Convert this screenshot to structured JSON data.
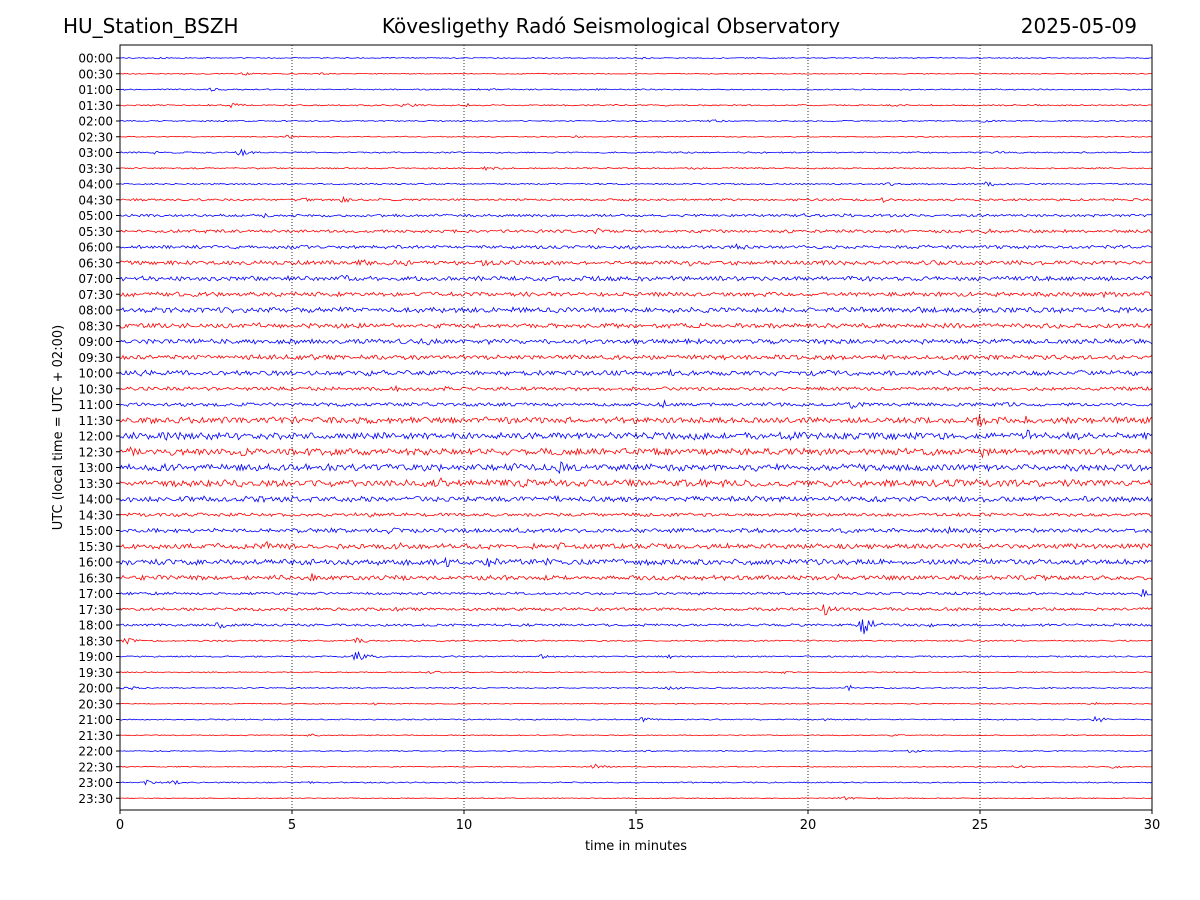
{
  "header": {
    "station": "HU_Station_BSZH",
    "observatory": "Kövesligethy Radó Seismological Observatory",
    "date": "2025-05-09"
  },
  "chart_data": {
    "type": "line",
    "subtype": "helicorder",
    "xlabel": "time in minutes",
    "ylabel": "UTC (local time = UTC + 02:00)",
    "xlim": [
      0,
      30
    ],
    "x_ticks": [
      "0",
      "5",
      "10",
      "15",
      "20",
      "25",
      "30"
    ],
    "grid": "vertical dotted at x = 5, 10, 15, 20, 25",
    "colors": {
      "even_rows": "#0000ff",
      "odd_rows": "#ff0000",
      "grid": "#000000"
    },
    "rows": [
      {
        "label": "00:00",
        "amplitude": 0.08,
        "events": [
          {
            "t": 1.1,
            "a": 0.2
          },
          {
            "t": 15.2,
            "a": 0.2
          }
        ]
      },
      {
        "label": "00:30",
        "amplitude": 0.08,
        "events": [
          {
            "t": 3.6,
            "a": 0.25
          },
          {
            "t": 5.8,
            "a": 0.2
          }
        ]
      },
      {
        "label": "01:00",
        "amplitude": 0.1,
        "events": [
          {
            "t": 2.7,
            "a": 0.3
          },
          {
            "t": 10.5,
            "a": 0.35
          },
          {
            "t": 13.9,
            "a": 0.2
          }
        ]
      },
      {
        "label": "01:30",
        "amplitude": 0.12,
        "events": [
          {
            "t": 3.3,
            "a": 0.45
          },
          {
            "t": 8.3,
            "a": 0.4
          },
          {
            "t": 10.1,
            "a": 0.35
          },
          {
            "t": 22.5,
            "a": 0.2
          }
        ]
      },
      {
        "label": "02:00",
        "amplitude": 0.1,
        "events": [
          {
            "t": 17.2,
            "a": 0.3
          },
          {
            "t": 25.1,
            "a": 0.25
          }
        ]
      },
      {
        "label": "02:30",
        "amplitude": 0.08,
        "events": [
          {
            "t": 4.9,
            "a": 0.25
          },
          {
            "t": 13.3,
            "a": 0.2
          }
        ]
      },
      {
        "label": "03:00",
        "amplitude": 0.12,
        "events": [
          {
            "t": 0.9,
            "a": 0.3
          },
          {
            "t": 3.5,
            "a": 0.55
          },
          {
            "t": 25.5,
            "a": 0.25
          }
        ]
      },
      {
        "label": "03:30",
        "amplitude": 0.12,
        "events": [
          {
            "t": 10.7,
            "a": 0.4
          },
          {
            "t": 16.6,
            "a": 0.3
          }
        ]
      },
      {
        "label": "04:00",
        "amplitude": 0.12,
        "events": [
          {
            "t": 22.3,
            "a": 0.35
          },
          {
            "t": 25.2,
            "a": 0.45
          }
        ]
      },
      {
        "label": "04:30",
        "amplitude": 0.18,
        "events": [
          {
            "t": 5.2,
            "a": 0.5
          },
          {
            "t": 6.5,
            "a": 0.45
          },
          {
            "t": 22.2,
            "a": 0.4
          }
        ]
      },
      {
        "label": "05:00",
        "amplitude": 0.22,
        "events": [
          {
            "t": 4.2,
            "a": 0.35
          },
          {
            "t": 19.8,
            "a": 0.4
          },
          {
            "t": 21.1,
            "a": 0.35
          }
        ]
      },
      {
        "label": "05:30",
        "amplitude": 0.25,
        "events": [
          {
            "t": 13.9,
            "a": 0.45
          },
          {
            "t": 19.3,
            "a": 0.4
          },
          {
            "t": 25.2,
            "a": 0.4
          }
        ]
      },
      {
        "label": "06:00",
        "amplitude": 0.28,
        "events": [
          {
            "t": 14.9,
            "a": 0.45
          },
          {
            "t": 18.0,
            "a": 0.7
          },
          {
            "t": 10.4,
            "a": 0.35
          }
        ]
      },
      {
        "label": "06:30",
        "amplitude": 0.35,
        "events": [
          {
            "t": 7.0,
            "a": 0.55
          },
          {
            "t": 8.3,
            "a": 0.6
          },
          {
            "t": 16.6,
            "a": 0.5
          },
          {
            "t": 10.6,
            "a": 0.5
          }
        ]
      },
      {
        "label": "07:00",
        "amplitude": 0.38,
        "events": [
          {
            "t": 6.5,
            "a": 0.55
          },
          {
            "t": 4.9,
            "a": 0.5
          }
        ]
      },
      {
        "label": "07:30",
        "amplitude": 0.35,
        "events": [
          {
            "t": 28.6,
            "a": 0.55
          },
          {
            "t": 12.5,
            "a": 0.45
          }
        ]
      },
      {
        "label": "08:00",
        "amplitude": 0.42,
        "events": [
          {
            "t": 9.2,
            "a": 0.55
          },
          {
            "t": 24.9,
            "a": 0.55
          }
        ]
      },
      {
        "label": "08:30",
        "amplitude": 0.38,
        "events": [
          {
            "t": 4.0,
            "a": 0.75
          },
          {
            "t": 5.1,
            "a": 0.55
          },
          {
            "t": 24.2,
            "a": 0.5
          }
        ]
      },
      {
        "label": "09:00",
        "amplitude": 0.4,
        "events": [
          {
            "t": 5.0,
            "a": 0.55
          },
          {
            "t": 9.0,
            "a": 0.55
          }
        ]
      },
      {
        "label": "09:30",
        "amplitude": 0.38,
        "events": [
          {
            "t": 5.6,
            "a": 0.55
          },
          {
            "t": 25.6,
            "a": 0.55
          }
        ]
      },
      {
        "label": "10:00",
        "amplitude": 0.42,
        "events": [
          {
            "t": 0.6,
            "a": 0.6
          },
          {
            "t": 3.3,
            "a": 0.55
          },
          {
            "t": 16.0,
            "a": 0.5
          }
        ]
      },
      {
        "label": "10:30",
        "amplitude": 0.3,
        "events": [
          {
            "t": 8.0,
            "a": 0.45
          },
          {
            "t": 9.5,
            "a": 0.4
          }
        ]
      },
      {
        "label": "11:00",
        "amplitude": 0.3,
        "events": [
          {
            "t": 15.8,
            "a": 0.7
          },
          {
            "t": 21.3,
            "a": 0.9
          }
        ]
      },
      {
        "label": "11:30",
        "amplitude": 0.5,
        "events": [
          {
            "t": 3.1,
            "a": 0.8
          },
          {
            "t": 5.0,
            "a": 0.8
          },
          {
            "t": 25.0,
            "a": 0.95
          },
          {
            "t": 26.4,
            "a": 0.8
          }
        ]
      },
      {
        "label": "12:00",
        "amplitude": 0.55,
        "events": [
          {
            "t": 1.3,
            "a": 0.7
          },
          {
            "t": 12.7,
            "a": 0.7
          },
          {
            "t": 26.4,
            "a": 0.9
          }
        ]
      },
      {
        "label": "12:30",
        "amplitude": 0.55,
        "events": [
          {
            "t": 0.2,
            "a": 0.95
          },
          {
            "t": 3.5,
            "a": 0.8
          },
          {
            "t": 25.1,
            "a": 0.9
          }
        ]
      },
      {
        "label": "13:00",
        "amplitude": 0.55,
        "events": [
          {
            "t": 11.5,
            "a": 0.75
          },
          {
            "t": 12.8,
            "a": 0.85
          },
          {
            "t": 18.4,
            "a": 0.7
          }
        ]
      },
      {
        "label": "13:30",
        "amplitude": 0.58,
        "events": [
          {
            "t": 9.3,
            "a": 0.9
          },
          {
            "t": 21.5,
            "a": 0.85
          },
          {
            "t": 24.4,
            "a": 0.8
          }
        ]
      },
      {
        "label": "14:00",
        "amplitude": 0.45,
        "events": [
          {
            "t": 4.8,
            "a": 0.55
          },
          {
            "t": 21.9,
            "a": 0.6
          }
        ]
      },
      {
        "label": "14:30",
        "amplitude": 0.28,
        "events": [
          {
            "t": 7.3,
            "a": 0.4
          }
        ]
      },
      {
        "label": "15:00",
        "amplitude": 0.35,
        "events": [
          {
            "t": 7.8,
            "a": 0.65
          },
          {
            "t": 21.0,
            "a": 0.55
          },
          {
            "t": 24.1,
            "a": 0.5
          }
        ]
      },
      {
        "label": "15:30",
        "amplitude": 0.42,
        "events": [
          {
            "t": 4.3,
            "a": 0.7
          },
          {
            "t": 8.1,
            "a": 0.8
          },
          {
            "t": 10.6,
            "a": 0.65
          },
          {
            "t": 12.8,
            "a": 0.6
          }
        ]
      },
      {
        "label": "16:00",
        "amplitude": 0.45,
        "events": [
          {
            "t": 8.2,
            "a": 0.75
          },
          {
            "t": 9.5,
            "a": 0.8
          },
          {
            "t": 10.7,
            "a": 0.95
          },
          {
            "t": 12.4,
            "a": 0.6
          }
        ]
      },
      {
        "label": "16:30",
        "amplitude": 0.38,
        "events": [
          {
            "t": 5.6,
            "a": 0.8
          },
          {
            "t": 4.5,
            "a": 0.6
          },
          {
            "t": 20.9,
            "a": 0.6
          }
        ]
      },
      {
        "label": "17:00",
        "amplitude": 0.22,
        "events": [
          {
            "t": 29.8,
            "a": 0.8
          }
        ]
      },
      {
        "label": "17:30",
        "amplitude": 0.25,
        "events": [
          {
            "t": 7.9,
            "a": 0.55
          },
          {
            "t": 20.5,
            "a": 0.85
          },
          {
            "t": 22.2,
            "a": 0.5
          }
        ]
      },
      {
        "label": "18:00",
        "amplitude": 0.2,
        "events": [
          {
            "t": 2.9,
            "a": 0.5
          },
          {
            "t": 21.6,
            "a": 1.4
          },
          {
            "t": 23.6,
            "a": 0.4
          }
        ]
      },
      {
        "label": "18:30",
        "amplitude": 0.12,
        "events": [
          {
            "t": 0.2,
            "a": 0.5
          },
          {
            "t": 6.9,
            "a": 0.45
          }
        ]
      },
      {
        "label": "19:00",
        "amplitude": 0.12,
        "events": [
          {
            "t": 6.9,
            "a": 0.8
          },
          {
            "t": 12.3,
            "a": 0.35
          },
          {
            "t": 16.0,
            "a": 0.3
          }
        ]
      },
      {
        "label": "19:30",
        "amplitude": 0.1,
        "events": [
          {
            "t": 9.0,
            "a": 0.3
          },
          {
            "t": 19.3,
            "a": 0.2
          }
        ]
      },
      {
        "label": "20:00",
        "amplitude": 0.1,
        "events": [
          {
            "t": 0.2,
            "a": 0.35
          },
          {
            "t": 16.0,
            "a": 0.35
          },
          {
            "t": 21.2,
            "a": 0.4
          }
        ]
      },
      {
        "label": "20:30",
        "amplitude": 0.08,
        "events": [
          {
            "t": 28.3,
            "a": 0.25
          },
          {
            "t": 7.4,
            "a": 0.2
          }
        ]
      },
      {
        "label": "21:00",
        "amplitude": 0.1,
        "events": [
          {
            "t": 15.2,
            "a": 0.4
          },
          {
            "t": 28.4,
            "a": 0.45
          },
          {
            "t": 20.5,
            "a": 0.25
          }
        ]
      },
      {
        "label": "21:30",
        "amplitude": 0.08,
        "events": [
          {
            "t": 5.5,
            "a": 0.25
          },
          {
            "t": 22.5,
            "a": 0.2
          }
        ]
      },
      {
        "label": "22:00",
        "amplitude": 0.08,
        "events": [
          {
            "t": 23.0,
            "a": 0.3
          },
          {
            "t": 15.3,
            "a": 0.2
          }
        ]
      },
      {
        "label": "22:30",
        "amplitude": 0.08,
        "events": [
          {
            "t": 13.8,
            "a": 0.45
          },
          {
            "t": 26.0,
            "a": 0.3
          },
          {
            "t": 28.9,
            "a": 0.25
          }
        ]
      },
      {
        "label": "23:00",
        "amplitude": 0.1,
        "events": [
          {
            "t": 0.8,
            "a": 0.5
          },
          {
            "t": 1.5,
            "a": 0.4
          },
          {
            "t": 5.5,
            "a": 0.25
          }
        ]
      },
      {
        "label": "23:30",
        "amplitude": 0.07,
        "events": [
          {
            "t": 21.0,
            "a": 0.3
          },
          {
            "t": 22.0,
            "a": 0.2
          }
        ]
      }
    ]
  }
}
